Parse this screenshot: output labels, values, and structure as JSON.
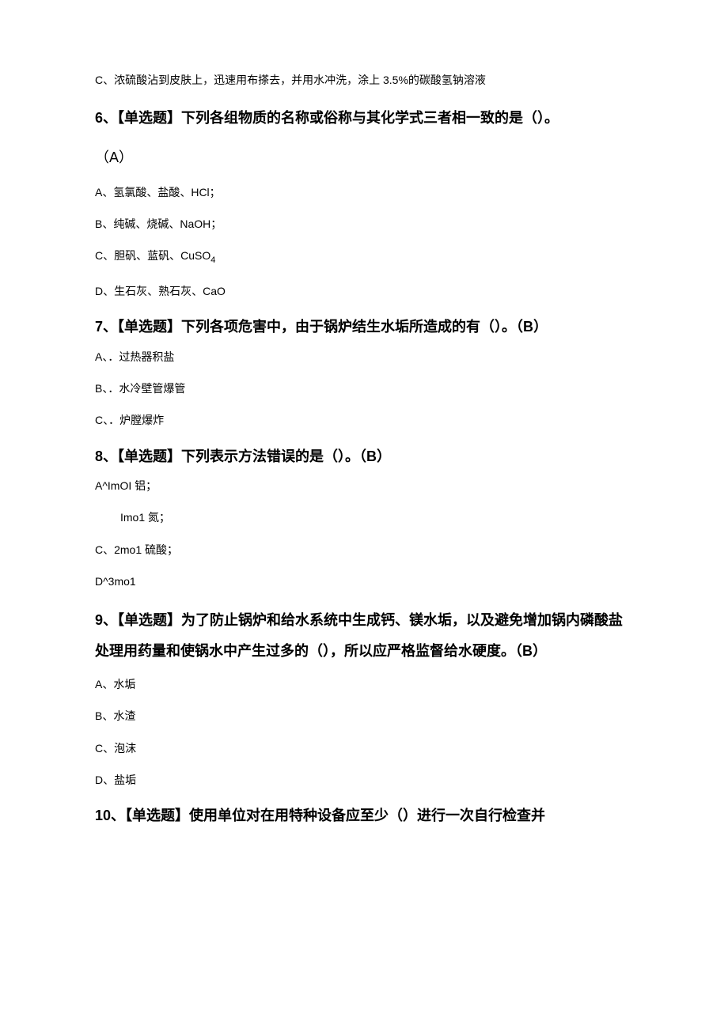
{
  "q5": {
    "optionC": "C、浓硫酸沾到皮肤上，迅速用布搽去，并用水冲洗，涂上 3.5%的碳酸氢钠溶液"
  },
  "q6": {
    "heading": "6、【单选题】下列各组物质的名称或俗称与其化学式三者相一致的是（）。",
    "answer": "（A）",
    "optionA": "A、氢氯酸、盐酸、HCl；",
    "optionB": "B、纯碱、烧碱、NaOH；",
    "optionC_prefix": "C、胆矾、蓝矾、CuSO",
    "optionC_sub": "4",
    "optionD": "D、生石灰、熟石灰、CaO"
  },
  "q7": {
    "heading": "7、【单选题】下列各项危害中，由于锅炉结生水垢所造成的有（）。（B）",
    "optionA": "A、．过热器积盐",
    "optionB": "B、．水冷壁管爆管",
    "optionC": "C、．炉膛爆炸"
  },
  "q8": {
    "heading": "8、【单选题】下列表示方法错误的是（）。（B）",
    "optionA": "A^ImOI 铝；",
    "optionA_sub": "Imo1 氮；",
    "optionC": "C、2mo1 硫酸；",
    "optionD": "D^3mo1"
  },
  "q9": {
    "heading": "9、【单选题】为了防止锅炉和给水系统中生成钙、镁水垢，以及避免增加锅内磷酸盐处理用药量和使锅水中产生过多的（），所以应严格监督给水硬度。（B）",
    "optionA": "A、水垢",
    "optionB": "B、水渣",
    "optionC": "C、泡沫",
    "optionD": "D、盐垢"
  },
  "q10": {
    "heading": "10、【单选题】使用单位对在用特种设备应至少（）进行一次自行检查并"
  }
}
